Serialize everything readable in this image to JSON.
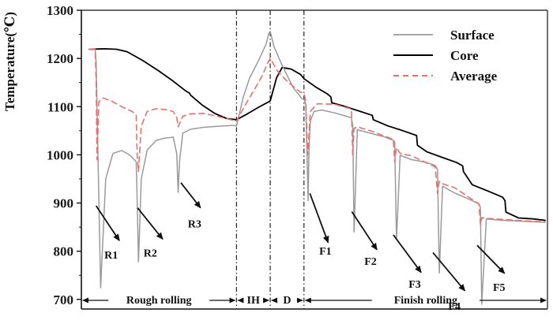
{
  "chart_data": {
    "type": "line",
    "title": "",
    "xlabel": "",
    "ylabel": "Temperature(℃)",
    "ylim": [
      680,
      1300
    ],
    "xlim": [
      0,
      100
    ],
    "grid": false,
    "legend_position": "top-right",
    "y_ticks": [
      700,
      800,
      900,
      1000,
      1100,
      1200,
      1300
    ],
    "y_tick_labels": [
      "700",
      "800",
      "900",
      "1000",
      "1100",
      "1200",
      "1300"
    ],
    "stage_boundaries": [
      32.3,
      39.7,
      47.1
    ],
    "stages": [
      {
        "label": "Rough rolling",
        "from": 0,
        "to": 32.3
      },
      {
        "label": "IH",
        "from": 32.3,
        "to": 39.7
      },
      {
        "label": "D",
        "from": 39.7,
        "to": 47.1
      },
      {
        "label": "Finish rolling",
        "from": 47.1,
        "to": 100
      }
    ],
    "annotations": [
      {
        "label": "R1",
        "arrow_from": [
          1.5,
          894
        ],
        "arrow_to": [
          6.6,
          822
        ],
        "text_at": [
          4.8,
          785
        ]
      },
      {
        "label": "R2",
        "arrow_from": [
          10.6,
          890
        ],
        "arrow_to": [
          16.1,
          825
        ],
        "text_at": [
          13.4,
          789
        ]
      },
      {
        "label": "R3",
        "arrow_from": [
          20.1,
          942
        ],
        "arrow_to": [
          24.4,
          890
        ],
        "text_at": [
          23.1,
          849
        ]
      },
      {
        "label": "F1",
        "arrow_from": [
          48.4,
          920
        ],
        "arrow_to": [
          52.4,
          818
        ],
        "text_at": [
          51.8,
          793
        ]
      },
      {
        "label": "F2",
        "arrow_from": [
          57.6,
          882
        ],
        "arrow_to": [
          63.1,
          803
        ],
        "text_at": [
          61.7,
          772
        ]
      },
      {
        "label": "F3",
        "arrow_from": [
          66.7,
          834
        ],
        "arrow_to": [
          72.8,
          756
        ],
        "text_at": [
          71.4,
          724
        ]
      },
      {
        "label": "F4",
        "arrow_from": [
          75.4,
          797
        ],
        "arrow_to": [
          82.4,
          718
        ],
        "text_at": [
          80.1,
          678
        ]
      },
      {
        "label": "F5",
        "arrow_from": [
          85.1,
          812
        ],
        "arrow_to": [
          91.1,
          754
        ],
        "text_at": [
          89.9,
          718
        ]
      }
    ],
    "series": [
      {
        "name": "Core",
        "color": "#000000",
        "dash": "none",
        "width": 1.8,
        "x": [
          0,
          3.4,
          6.0,
          8.3,
          11.7,
          15.1,
          18.4,
          21.1,
          22.0,
          22.2,
          24.8,
          27.5,
          30.2,
          32.3,
          34.7,
          37.0,
          39.4,
          39.7,
          41.1,
          42.3,
          44.3,
          46.3,
          46.8,
          47.1,
          49.8,
          52.3,
          53.0,
          53.2,
          55.5,
          58.8,
          62.1,
          62.3,
          65.5,
          68.8,
          71.8,
          72.0,
          74.1,
          77.3,
          80.6,
          81.9,
          82.1,
          84.0,
          87.4,
          90.7,
          91.2,
          91.4,
          94.2,
          97.4,
          100
        ],
        "y": [
          1219,
          1220,
          1219,
          1214,
          1196,
          1175,
          1153,
          1133,
          1128,
          1124,
          1103,
          1086,
          1075,
          1073,
          1085,
          1098,
          1110,
          1112,
          1160,
          1181,
          1178,
          1167,
          1162,
          1158,
          1140,
          1126,
          1120,
          1108,
          1102,
          1092,
          1082,
          1073,
          1060,
          1050,
          1040,
          1020,
          1006,
          995,
          984,
          977,
          965,
          938,
          925,
          912,
          905,
          881,
          869,
          867,
          864
        ]
      },
      {
        "name": "Surface",
        "color": "#9a9a9a",
        "dash": "none",
        "width": 1.5,
        "x": [
          0,
          1.3,
          1.5,
          1.9,
          2.5,
          3.6,
          5.2,
          7.1,
          8.8,
          9.9,
          10.3,
          10.5,
          10.8,
          11.4,
          12.7,
          14.7,
          16.7,
          17.9,
          18.4,
          19.2,
          19.5,
          19.8,
          20.5,
          22.2,
          25.1,
          28.1,
          31.4,
          32.3,
          33.8,
          35.2,
          37.1,
          38.8,
          39.4,
          39.7,
          40.5,
          42.1,
          44.7,
          46.6,
          47.1,
          47.5,
          48.0,
          48.2,
          48.5,
          49.3,
          51.0,
          53.8,
          56.4,
          57.5,
          57.8,
          58.1,
          58.8,
          61.6,
          64.8,
          66.7,
          67.0,
          67.4,
          68.2,
          70.7,
          73.7,
          75.9,
          76.4,
          76.8,
          77.5,
          80.1,
          83.5,
          85.5,
          85.8,
          86.1,
          87.1,
          90.7,
          95.4,
          100
        ],
        "y": [
          1219,
          1219,
          1190,
          1000,
          724,
          950,
          1003,
          1009,
          1000,
          990,
          985,
          910,
          778,
          950,
          1010,
          1030,
          1035,
          1036,
          1037,
          1002,
          922,
          985,
          1045,
          1053,
          1057,
          1059,
          1061,
          1060,
          1120,
          1160,
          1195,
          1230,
          1252,
          1256,
          1225,
          1190,
          1140,
          1117,
          1115,
          1105,
          905,
          1010,
          1070,
          1090,
          1093,
          1087,
          1080,
          1077,
          1060,
          840,
          1052,
          1045,
          1037,
          1030,
          1027,
          825,
          999,
          990,
          985,
          978,
          970,
          755,
          935,
          921,
          907,
          898,
          891,
          690,
          867,
          864,
          862,
          860
        ]
      },
      {
        "name": "Average",
        "color": "#e8716f",
        "dash": "7 5",
        "width": 1.6,
        "x": [
          0,
          1.3,
          1.5,
          1.7,
          2.1,
          3.0,
          4.8,
          7.1,
          9.4,
          10.3,
          10.5,
          10.8,
          11.4,
          12.7,
          14.7,
          17.2,
          18.4,
          19.2,
          19.5,
          19.8,
          20.5,
          22.2,
          25.1,
          28.1,
          30.6,
          32.3,
          34.0,
          35.9,
          38.0,
          39.1,
          39.7,
          41.2,
          43.7,
          46.3,
          47.1,
          47.5,
          47.9,
          48.2,
          48.5,
          50.0,
          53.8,
          57.5,
          57.8,
          58.1,
          58.8,
          61.6,
          66.7,
          67.0,
          67.4,
          68.2,
          70.7,
          75.9,
          76.4,
          76.8,
          77.5,
          80.1,
          85.5,
          85.8,
          86.1,
          87.1,
          90.7,
          95.4,
          100
        ],
        "y": [
          1219,
          1219,
          1150,
          990,
          1110,
          1118,
          1112,
          1100,
          1090,
          1083,
          1000,
          965,
          1060,
          1090,
          1096,
          1093,
          1090,
          1077,
          1058,
          1065,
          1080,
          1085,
          1086,
          1080,
          1074,
          1070,
          1100,
          1130,
          1165,
          1190,
          1200,
          1175,
          1150,
          1130,
          1128,
          1110,
          1000,
          1040,
          1090,
          1106,
          1105,
          1095,
          1000,
          1055,
          1058,
          1050,
          1032,
          985,
          1015,
          1003,
          998,
          975,
          920,
          945,
          940,
          932,
          898,
          855,
          870,
          868,
          866,
          863,
          861
        ]
      }
    ]
  }
}
